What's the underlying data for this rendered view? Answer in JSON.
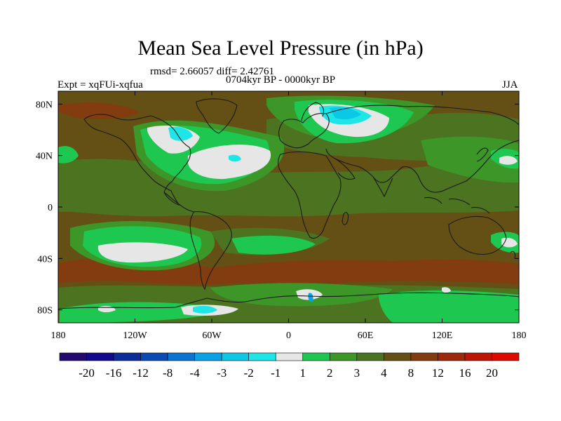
{
  "map": {
    "title": "Mean Sea Level Pressure (in hPa)",
    "stats_text": "rmsd= 2.66057 diff= 2.42761",
    "period_text": "0704kyr BP - 0000kyr BP",
    "expt_text": "Expt = xqFUi-xqfua",
    "season_text": "JJA",
    "lat_ticks": [
      {
        "label": "80N",
        "lat": 80
      },
      {
        "label": "40N",
        "lat": 40
      },
      {
        "label": "0",
        "lat": 0
      },
      {
        "label": "40S",
        "lat": -40
      },
      {
        "label": "80S",
        "lat": -80
      }
    ],
    "lon_ticks": [
      {
        "label": "180",
        "lon": -180
      },
      {
        "label": "120W",
        "lon": -120
      },
      {
        "label": "60W",
        "lon": -60
      },
      {
        "label": "0",
        "lon": 0
      },
      {
        "label": "60E",
        "lon": 60
      },
      {
        "label": "120E",
        "lon": 120
      },
      {
        "label": "180",
        "lon": 180
      }
    ]
  },
  "colorbar": {
    "colors": [
      "#230a6e",
      "#120a8c",
      "#0b2c99",
      "#0a4ab4",
      "#0a74d2",
      "#0aa2e6",
      "#0ac8e6",
      "#1ee6e6",
      "#e6e6e6",
      "#1ec850",
      "#3c9628",
      "#4b7320",
      "#645014",
      "#823c0f",
      "#a0280a",
      "#be1405",
      "#dc0a00"
    ],
    "labels": [
      "-20",
      "-16",
      "-12",
      "-8",
      "-4",
      "-3",
      "-2",
      "-1",
      "1",
      "2",
      "3",
      "4",
      "8",
      "12",
      "16",
      "20"
    ]
  },
  "palette": {
    "base_brown": "#645014",
    "olive": "#4b7320",
    "green": "#3c9628",
    "bright_green": "#1ec850",
    "white": "#e6e6e6",
    "cyan": "#1ee6e6",
    "light_blue": "#0ac8e6",
    "blue": "#0aa2e6",
    "reddish_brown": "#823c0f",
    "coast": "#1a1a1a"
  }
}
